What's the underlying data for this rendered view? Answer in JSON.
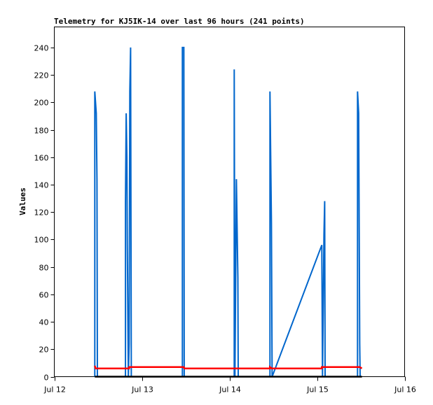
{
  "chart_data": {
    "type": "line",
    "title": "Telemetry for KJ5IK-14 over last 96 hours (241 points)",
    "xlabel": "",
    "ylabel": "Values",
    "xlim": [
      "Jul 12 00:00",
      "Jul 16 00:00"
    ],
    "ylim": [
      0,
      255
    ],
    "x_ticks": [
      "Jul 12",
      "Jul 13",
      "Jul 14",
      "Jul 15",
      "Jul 16"
    ],
    "y_ticks": [
      0,
      20,
      40,
      60,
      80,
      100,
      120,
      140,
      160,
      180,
      200,
      220,
      240
    ],
    "grid": false,
    "series": [
      {
        "color": "#0066cc",
        "points": [
          [
            "Jul 12 11:06",
            0
          ],
          [
            "Jul 12 11:06",
            208
          ],
          [
            "Jul 12 11:30",
            192
          ],
          [
            "Jul 12 11:42",
            144
          ],
          [
            "Jul 12 11:48",
            0
          ],
          [
            "Jul 12 19:30",
            0
          ],
          [
            "Jul 12 19:30",
            128
          ],
          [
            "Jul 12 19:42",
            192
          ],
          [
            "Jul 12 19:54",
            160
          ],
          [
            "Jul 12 20:00",
            96
          ],
          [
            "Jul 12 20:12",
            32
          ],
          [
            "Jul 12 20:18",
            0
          ],
          [
            "Jul 12 20:30",
            24
          ],
          [
            "Jul 12 20:42",
            208
          ],
          [
            "Jul 12 20:54",
            240
          ],
          [
            "Jul 12 21:06",
            0
          ],
          [
            "Jul 13 11:06",
            0
          ],
          [
            "Jul 13 11:06",
            240
          ],
          [
            "Jul 13 11:30",
            240
          ],
          [
            "Jul 13 11:36",
            0
          ],
          [
            "Jul 14 01:18",
            0
          ],
          [
            "Jul 14 01:18",
            224
          ],
          [
            "Jul 14 01:30",
            0
          ],
          [
            "Jul 14 01:54",
            144
          ],
          [
            "Jul 14 02:18",
            72
          ],
          [
            "Jul 14 02:24",
            0
          ],
          [
            "Jul 14 11:06",
            0
          ],
          [
            "Jul 14 11:06",
            208
          ],
          [
            "Jul 14 11:30",
            112
          ],
          [
            "Jul 14 11:42",
            0
          ],
          [
            "Jul 15 01:18",
            96
          ],
          [
            "Jul 15 01:30",
            0
          ],
          [
            "Jul 15 01:54",
            104
          ],
          [
            "Jul 15 02:06",
            128
          ],
          [
            "Jul 15 02:12",
            0
          ],
          [
            "Jul 15 11:06",
            0
          ],
          [
            "Jul 15 11:06",
            208
          ],
          [
            "Jul 15 11:24",
            192
          ],
          [
            "Jul 15 11:42",
            24
          ],
          [
            "Jul 15 11:48",
            0
          ]
        ]
      },
      {
        "color": "#ff0000",
        "points": [
          [
            "Jul 12 11:06",
            8
          ],
          [
            "Jul 12 11:18",
            6
          ],
          [
            "Jul 12 20:30",
            6
          ],
          [
            "Jul 12 20:30",
            7
          ],
          [
            "Jul 13 11:30",
            7
          ],
          [
            "Jul 13 11:36",
            6
          ],
          [
            "Jul 14 11:06",
            6
          ],
          [
            "Jul 14 11:06",
            7
          ],
          [
            "Jul 14 11:36",
            6
          ],
          [
            "Jul 15 01:18",
            6
          ],
          [
            "Jul 15 01:18",
            7
          ],
          [
            "Jul 15 11:42",
            7
          ],
          [
            "Jul 15 12:18",
            6
          ]
        ]
      },
      {
        "color": "#000000",
        "points": [
          [
            "Jul 12 11:06",
            0
          ],
          [
            "Jul 15 12:18",
            0
          ]
        ]
      }
    ]
  }
}
